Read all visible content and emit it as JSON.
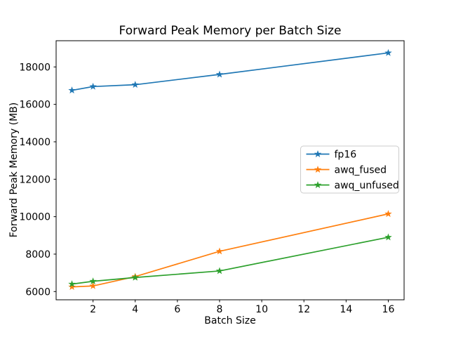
{
  "chart_data": {
    "type": "line",
    "title": "Forward Peak Memory per Batch Size",
    "xlabel": "Batch Size",
    "ylabel": "Forward Peak Memory (MB)",
    "x": [
      1,
      2,
      4,
      8,
      16
    ],
    "series": [
      {
        "name": "fp16",
        "color": "#1f77b4",
        "values": [
          16750,
          16950,
          17050,
          17600,
          18750
        ]
      },
      {
        "name": "awq_fused",
        "color": "#ff7f0e",
        "values": [
          6250,
          6300,
          6800,
          8150,
          10150
        ]
      },
      {
        "name": "awq_unfused",
        "color": "#2ca02c",
        "values": [
          6400,
          6550,
          6750,
          7100,
          8900
        ]
      }
    ],
    "marker": "star",
    "line_width": 1.7,
    "xticks": [
      2,
      4,
      6,
      8,
      10,
      12,
      14,
      16
    ],
    "yticks": [
      6000,
      8000,
      10000,
      12000,
      14000,
      16000,
      18000
    ],
    "xlim": [
      0.25,
      16.75
    ],
    "ylim": [
      5560,
      19400
    ],
    "grid": false,
    "legend": {
      "position": "center-right",
      "entries": [
        "fp16",
        "awq_fused",
        "awq_unfused"
      ]
    },
    "colors": {
      "spine": "#000000",
      "legend_border": "#cccccc",
      "background": "#ffffff"
    }
  }
}
